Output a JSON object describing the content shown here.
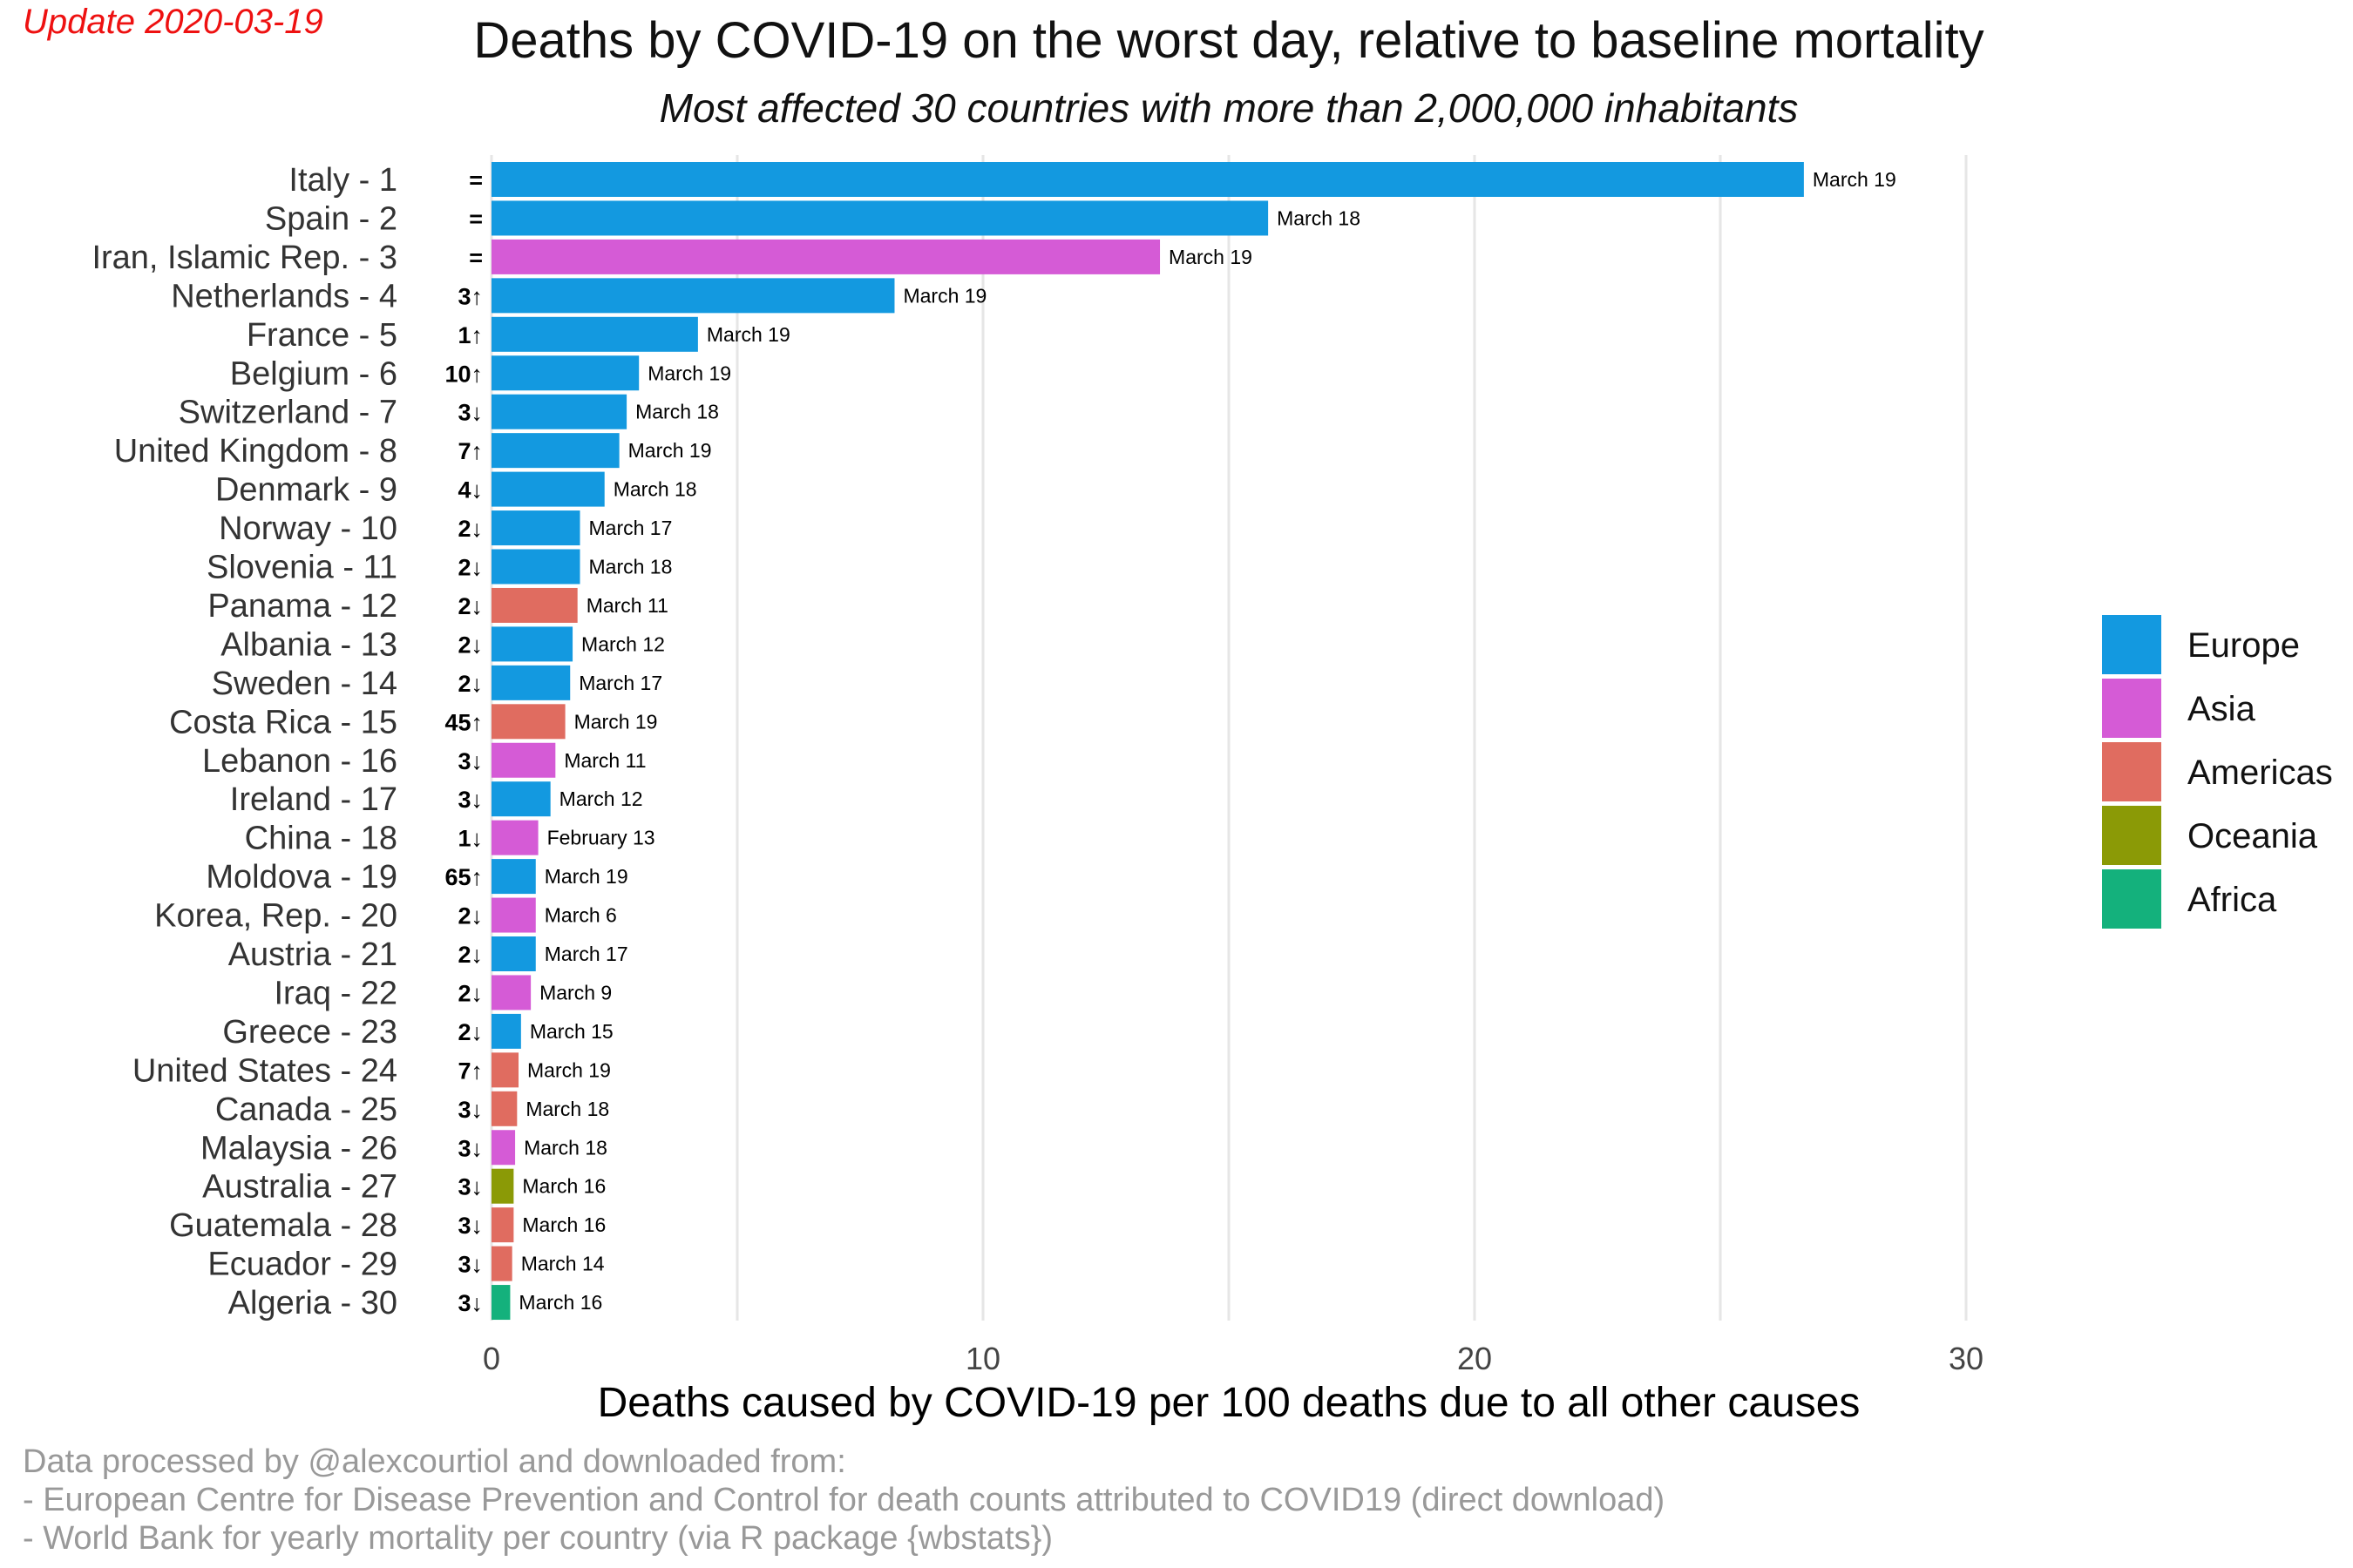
{
  "update_note": "Update 2020-03-19",
  "caption_lines": [
    "Data processed by @alexcourtiol and downloaded from:",
    " - European Centre for Disease Prevention and Control for death counts attributed to COVID19 (direct download)",
    " - World Bank for yearly mortality per country (via R package {wbstats})"
  ],
  "chart_data": {
    "type": "bar",
    "orientation": "horizontal",
    "title": "Deaths by COVID-19 on the worst day, relative to baseline mortality",
    "subtitle": "Most affected 30 countries with more than 2,000,000 inhabitants",
    "xlabel": "Deaths caused by COVID-19 per 100 deaths due to all other causes",
    "ylabel": "",
    "xlim": [
      0,
      30
    ],
    "xticks": [
      0,
      10,
      20,
      30
    ],
    "grid": true,
    "legend_position": "right",
    "legend": [
      {
        "name": "Europe",
        "color": "#1399e0"
      },
      {
        "name": "Asia",
        "color": "#d55bd6"
      },
      {
        "name": "Americas",
        "color": "#e06c60"
      },
      {
        "name": "Oceania",
        "color": "#8b9a06"
      },
      {
        "name": "Africa",
        "color": "#14b17c"
      }
    ],
    "bars": [
      {
        "country": "Italy - 1",
        "value": 26.7,
        "region": "Europe",
        "change": "=",
        "date": "March 19"
      },
      {
        "country": "Spain - 2",
        "value": 15.8,
        "region": "Europe",
        "change": "=",
        "date": "March 18"
      },
      {
        "country": "Iran, Islamic Rep. - 3",
        "value": 13.6,
        "region": "Asia",
        "change": "=",
        "date": "March 19"
      },
      {
        "country": "Netherlands - 4",
        "value": 8.2,
        "region": "Europe",
        "change": "3↑",
        "date": "March 19"
      },
      {
        "country": "France - 5",
        "value": 4.2,
        "region": "Europe",
        "change": "1↑",
        "date": "March 19"
      },
      {
        "country": "Belgium - 6",
        "value": 3.0,
        "region": "Europe",
        "change": "10↑",
        "date": "March 19"
      },
      {
        "country": "Switzerland - 7",
        "value": 2.75,
        "region": "Europe",
        "change": "3↓",
        "date": "March 18"
      },
      {
        "country": "United Kingdom - 8",
        "value": 2.6,
        "region": "Europe",
        "change": "7↑",
        "date": "March 19"
      },
      {
        "country": "Denmark - 9",
        "value": 2.3,
        "region": "Europe",
        "change": "4↓",
        "date": "March 18"
      },
      {
        "country": "Norway - 10",
        "value": 1.8,
        "region": "Europe",
        "change": "2↓",
        "date": "March 17"
      },
      {
        "country": "Slovenia - 11",
        "value": 1.8,
        "region": "Europe",
        "change": "2↓",
        "date": "March 18"
      },
      {
        "country": "Panama - 12",
        "value": 1.75,
        "region": "Americas",
        "change": "2↓",
        "date": "March 11"
      },
      {
        "country": "Albania - 13",
        "value": 1.65,
        "region": "Europe",
        "change": "2↓",
        "date": "March 12"
      },
      {
        "country": "Sweden - 14",
        "value": 1.6,
        "region": "Europe",
        "change": "2↓",
        "date": "March 17"
      },
      {
        "country": "Costa Rica - 15",
        "value": 1.5,
        "region": "Americas",
        "change": "45↑",
        "date": "March 19"
      },
      {
        "country": "Lebanon - 16",
        "value": 1.3,
        "region": "Asia",
        "change": "3↓",
        "date": "March 11"
      },
      {
        "country": "Ireland - 17",
        "value": 1.2,
        "region": "Europe",
        "change": "3↓",
        "date": "March 12"
      },
      {
        "country": "China - 18",
        "value": 0.95,
        "region": "Asia",
        "change": "1↓",
        "date": "February 13"
      },
      {
        "country": "Moldova - 19",
        "value": 0.9,
        "region": "Europe",
        "change": "65↑",
        "date": "March 19"
      },
      {
        "country": "Korea, Rep. - 20",
        "value": 0.9,
        "region": "Asia",
        "change": "2↓",
        "date": "March 6"
      },
      {
        "country": "Austria - 21",
        "value": 0.9,
        "region": "Europe",
        "change": "2↓",
        "date": "March 17"
      },
      {
        "country": "Iraq - 22",
        "value": 0.8,
        "region": "Asia",
        "change": "2↓",
        "date": "March 9"
      },
      {
        "country": "Greece - 23",
        "value": 0.6,
        "region": "Europe",
        "change": "2↓",
        "date": "March 15"
      },
      {
        "country": "United States - 24",
        "value": 0.55,
        "region": "Americas",
        "change": "7↑",
        "date": "March 19"
      },
      {
        "country": "Canada - 25",
        "value": 0.52,
        "region": "Americas",
        "change": "3↓",
        "date": "March 18"
      },
      {
        "country": "Malaysia - 26",
        "value": 0.48,
        "region": "Asia",
        "change": "3↓",
        "date": "March 18"
      },
      {
        "country": "Australia - 27",
        "value": 0.45,
        "region": "Oceania",
        "change": "3↓",
        "date": "March 16"
      },
      {
        "country": "Guatemala - 28",
        "value": 0.45,
        "region": "Americas",
        "change": "3↓",
        "date": "March 16"
      },
      {
        "country": "Ecuador - 29",
        "value": 0.42,
        "region": "Americas",
        "change": "3↓",
        "date": "March 14"
      },
      {
        "country": "Algeria - 30",
        "value": 0.38,
        "region": "Africa",
        "change": "3↓",
        "date": "March 16"
      }
    ]
  }
}
